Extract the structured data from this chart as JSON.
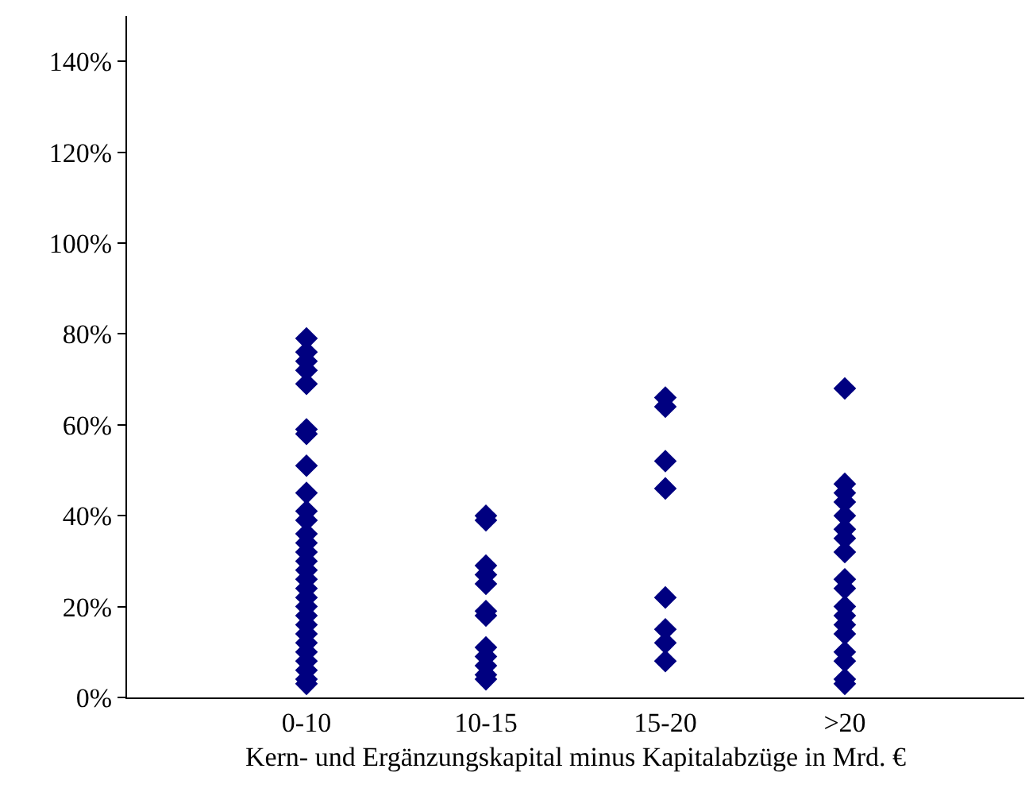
{
  "chart_data": {
    "type": "scatter",
    "xlabel": "Kern- und Ergänzungskapital minus Kapitalabzüge in Mrd. €",
    "categories": [
      "0-10",
      "10-15",
      "15-20",
      ">20"
    ],
    "series": [
      {
        "color": "#000080",
        "x": [
          "0-10",
          "0-10",
          "0-10",
          "0-10",
          "0-10",
          "0-10",
          "0-10",
          "0-10",
          "0-10",
          "0-10",
          "0-10",
          "0-10",
          "0-10",
          "0-10",
          "0-10",
          "0-10",
          "0-10",
          "0-10",
          "0-10",
          "0-10",
          "0-10",
          "0-10",
          "0-10",
          "0-10",
          "0-10",
          "0-10",
          "0-10",
          "0-10",
          "0-10",
          "10-15",
          "10-15",
          "10-15",
          "10-15",
          "10-15",
          "10-15",
          "10-15",
          "10-15",
          "10-15",
          "10-15",
          "10-15",
          "10-15",
          "15-20",
          "15-20",
          "15-20",
          "15-20",
          "15-20",
          "15-20",
          "15-20",
          "15-20",
          ">20",
          ">20",
          ">20",
          ">20",
          ">20",
          ">20",
          ">20",
          ">20",
          ">20",
          ">20",
          ">20",
          ">20",
          ">20",
          ">20",
          ">20",
          ">20",
          ">20",
          ">20"
        ],
        "values": [
          79,
          76,
          74,
          72,
          69,
          59,
          58,
          51,
          45,
          41,
          39,
          36,
          34,
          32,
          30,
          28,
          26,
          24,
          22,
          20,
          18,
          16,
          14,
          12,
          10,
          8,
          6,
          4,
          3,
          40,
          39,
          29,
          27,
          25,
          19,
          18,
          11,
          9,
          7,
          5,
          4,
          66,
          64,
          52,
          46,
          22,
          15,
          12,
          8,
          68,
          47,
          45,
          43,
          40,
          37,
          35,
          32,
          26,
          24,
          20,
          18,
          16,
          14,
          10,
          8,
          4,
          3
        ]
      }
    ],
    "ylim": [
      0,
      150
    ],
    "yticks": [
      {
        "value": 0,
        "label": "0%"
      },
      {
        "value": 20,
        "label": "20%"
      },
      {
        "value": 40,
        "label": "40%"
      },
      {
        "value": 60,
        "label": "60%"
      },
      {
        "value": 80,
        "label": "80%"
      },
      {
        "value": 100,
        "label": "100%"
      },
      {
        "value": 120,
        "label": "120%"
      },
      {
        "value": 140,
        "label": "140%"
      }
    ],
    "marker": "diamond",
    "grid": false
  }
}
